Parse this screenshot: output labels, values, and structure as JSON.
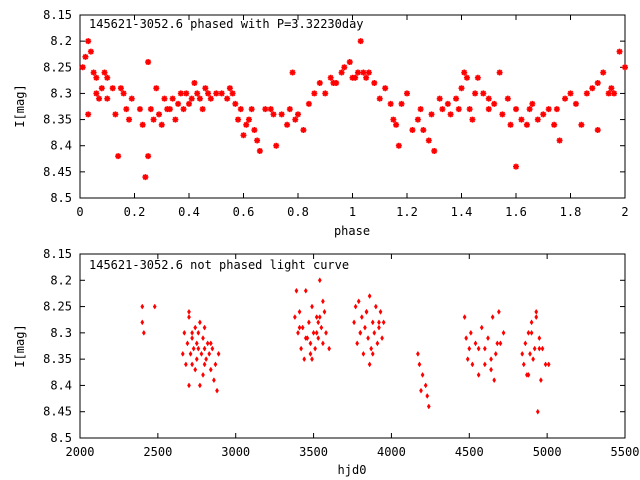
{
  "charts": [
    {
      "type": "scatter",
      "title": "145621-3052.6 phased with P=3.32230day",
      "xlabel": "phase",
      "ylabel": "I[mag]",
      "xlim": [
        0,
        2
      ],
      "ylim": [
        8.5,
        8.15
      ],
      "y_inverted": true,
      "xticks": [
        "0",
        "0.2",
        "0.4",
        "0.6",
        "0.8",
        "1",
        "1.2",
        "1.4",
        "1.6",
        "1.8",
        "2"
      ],
      "yticks": [
        "8.15",
        "8.2",
        "8.25",
        "8.3",
        "8.35",
        "8.4",
        "8.45",
        "8.5"
      ],
      "marker": "star",
      "color": "#ff0000",
      "series": [
        {
          "x": [
            0.01,
            0.02,
            0.03,
            0.03,
            0.04,
            0.05,
            0.06,
            0.06,
            0.07,
            0.08,
            0.09,
            0.1,
            0.1,
            0.12,
            0.13,
            0.14,
            0.15,
            0.16,
            0.17,
            0.18,
            0.19,
            0.22,
            0.23,
            0.24,
            0.25,
            0.25,
            0.26,
            0.27,
            0.28,
            0.29,
            0.3,
            0.31,
            0.32,
            0.33,
            0.34,
            0.35,
            0.36,
            0.37,
            0.38,
            0.39,
            0.4,
            0.41,
            0.42,
            0.43,
            0.44,
            0.45,
            0.46,
            0.47,
            0.48,
            0.5,
            0.52,
            0.54,
            0.55,
            0.56,
            0.57,
            0.58,
            0.59,
            0.6,
            0.61,
            0.62,
            0.63,
            0.64,
            0.65,
            0.66,
            0.68,
            0.7,
            0.71,
            0.72,
            0.74,
            0.76,
            0.77,
            0.78,
            0.79,
            0.8,
            0.82,
            0.84,
            0.86,
            0.88,
            0.9,
            0.92,
            0.93,
            0.94,
            0.96,
            0.97,
            0.99,
            1.0,
            1.01,
            1.02,
            1.03,
            1.04,
            1.05,
            1.06,
            1.08,
            1.1,
            1.12,
            1.14,
            1.15,
            1.16,
            1.17,
            1.18,
            1.2,
            1.22,
            1.24,
            1.25,
            1.26,
            1.28,
            1.29,
            1.3,
            1.32,
            1.33,
            1.35,
            1.36,
            1.38,
            1.39,
            1.4,
            1.41,
            1.42,
            1.43,
            1.44,
            1.45,
            1.46,
            1.48,
            1.5,
            1.5,
            1.52,
            1.54,
            1.55,
            1.57,
            1.58,
            1.6,
            1.6,
            1.62,
            1.64,
            1.65,
            1.66,
            1.68,
            1.7,
            1.72,
            1.74,
            1.75,
            1.76,
            1.78,
            1.8,
            1.82,
            1.84,
            1.86,
            1.88,
            1.9,
            1.9,
            1.92,
            1.94,
            1.95,
            1.96,
            1.98,
            2.0
          ],
          "y": [
            8.25,
            8.23,
            8.2,
            8.34,
            8.22,
            8.26,
            8.27,
            8.3,
            8.31,
            8.29,
            8.26,
            8.27,
            8.31,
            8.29,
            8.34,
            8.42,
            8.29,
            8.3,
            8.33,
            8.35,
            8.31,
            8.33,
            8.36,
            8.46,
            8.42,
            8.24,
            8.33,
            8.35,
            8.29,
            8.34,
            8.36,
            8.31,
            8.33,
            8.33,
            8.31,
            8.35,
            8.32,
            8.3,
            8.33,
            8.3,
            8.32,
            8.31,
            8.28,
            8.3,
            8.31,
            8.33,
            8.29,
            8.3,
            8.31,
            8.3,
            8.3,
            8.31,
            8.29,
            8.3,
            8.32,
            8.35,
            8.33,
            8.38,
            8.36,
            8.35,
            8.33,
            8.37,
            8.39,
            8.41,
            8.33,
            8.33,
            8.34,
            8.4,
            8.34,
            8.36,
            8.33,
            8.26,
            8.35,
            8.34,
            8.37,
            8.32,
            8.3,
            8.28,
            8.3,
            8.27,
            8.28,
            8.28,
            8.26,
            8.25,
            8.24,
            8.27,
            8.27,
            8.26,
            8.2,
            8.26,
            8.27,
            8.26,
            8.28,
            8.31,
            8.29,
            8.32,
            8.35,
            8.36,
            8.4,
            8.32,
            8.3,
            8.37,
            8.35,
            8.33,
            8.37,
            8.39,
            8.34,
            8.41,
            8.31,
            8.33,
            8.32,
            8.34,
            8.31,
            8.33,
            8.29,
            8.26,
            8.27,
            8.33,
            8.35,
            8.3,
            8.27,
            8.3,
            8.33,
            8.31,
            8.32,
            8.26,
            8.34,
            8.31,
            8.36,
            8.33,
            8.44,
            8.35,
            8.36,
            8.33,
            8.32,
            8.35,
            8.34,
            8.33,
            8.36,
            8.33,
            8.39,
            8.31,
            8.3,
            8.32,
            8.36,
            8.3,
            8.29,
            8.37,
            8.28,
            8.26,
            8.3,
            8.29,
            8.3,
            8.22,
            8.25
          ]
        }
      ]
    },
    {
      "type": "scatter",
      "title": "145621-3052.6 not phased light curve",
      "xlabel": "hjd0",
      "ylabel": "I[mag]",
      "xlim": [
        2000,
        5500
      ],
      "ylim": [
        8.5,
        8.15
      ],
      "y_inverted": true,
      "xticks": [
        "2000",
        "2500",
        "3000",
        "3500",
        "4000",
        "4500",
        "5000",
        "5500"
      ],
      "yticks": [
        "8.15",
        "8.2",
        "8.25",
        "8.3",
        "8.35",
        "8.4",
        "8.45",
        "8.5"
      ],
      "marker": "diamond",
      "color": "#ff0000",
      "series": [
        {
          "x": [
            2400,
            2400,
            2410,
            2480,
            2660,
            2670,
            2680,
            2690,
            2700,
            2700,
            2710,
            2720,
            2720,
            2730,
            2740,
            2740,
            2750,
            2750,
            2760,
            2770,
            2770,
            2780,
            2790,
            2790,
            2800,
            2800,
            2810,
            2820,
            2830,
            2840,
            2850,
            2860,
            2870,
            2880,
            2890,
            2700,
            2720,
            2760,
            2800,
            2840,
            3380,
            3390,
            3400,
            3410,
            3420,
            3430,
            3440,
            3450,
            3460,
            3470,
            3480,
            3490,
            3500,
            3510,
            3520,
            3530,
            3540,
            3550,
            3560,
            3570,
            3580,
            3600,
            3410,
            3450,
            3490,
            3530,
            3560,
            3480,
            3520,
            3540,
            3760,
            3770,
            3780,
            3790,
            3800,
            3810,
            3820,
            3830,
            3840,
            3850,
            3860,
            3870,
            3880,
            3890,
            3900,
            3910,
            3920,
            3930,
            3940,
            3950,
            3800,
            3840,
            3880,
            3920,
            3860,
            4170,
            4180,
            4190,
            4200,
            4220,
            4230,
            4240,
            4470,
            4480,
            4490,
            4500,
            4510,
            4520,
            4540,
            4560,
            4580,
            4600,
            4620,
            4640,
            4650,
            4660,
            4670,
            4690,
            4700,
            4720,
            4600,
            4560,
            4640,
            4680,
            4840,
            4850,
            4860,
            4870,
            4880,
            4890,
            4900,
            4910,
            4920,
            4930,
            4940,
            4950,
            4960,
            4970,
            4990,
            5010,
            4900,
            4930,
            4950,
            4880
          ],
          "y": [
            8.25,
            8.28,
            8.3,
            8.25,
            8.34,
            8.3,
            8.36,
            8.32,
            8.27,
            8.4,
            8.34,
            8.3,
            8.36,
            8.33,
            8.29,
            8.37,
            8.32,
            8.35,
            8.33,
            8.4,
            8.28,
            8.34,
            8.31,
            8.38,
            8.33,
            8.36,
            8.35,
            8.32,
            8.34,
            8.37,
            8.33,
            8.39,
            8.36,
            8.41,
            8.34,
            8.26,
            8.31,
            8.3,
            8.29,
            8.32,
            8.27,
            8.22,
            8.3,
            8.26,
            8.33,
            8.29,
            8.35,
            8.22,
            8.31,
            8.28,
            8.34,
            8.25,
            8.3,
            8.33,
            8.27,
            8.31,
            8.2,
            8.29,
            8.32,
            8.26,
            8.3,
            8.33,
            8.29,
            8.31,
            8.35,
            8.28,
            8.24,
            8.32,
            8.3,
            8.27,
            8.28,
            8.25,
            8.32,
            8.24,
            8.3,
            8.27,
            8.34,
            8.29,
            8.26,
            8.31,
            8.23,
            8.33,
            8.28,
            8.3,
            8.25,
            8.32,
            8.29,
            8.26,
            8.31,
            8.28,
            8.3,
            8.26,
            8.34,
            8.28,
            8.36,
            8.34,
            8.36,
            8.41,
            8.38,
            8.4,
            8.42,
            8.44,
            8.27,
            8.31,
            8.35,
            8.33,
            8.3,
            8.36,
            8.32,
            8.38,
            8.29,
            8.33,
            8.31,
            8.35,
            8.27,
            8.39,
            8.34,
            8.26,
            8.32,
            8.3,
            8.36,
            8.33,
            8.37,
            8.32,
            8.34,
            8.36,
            8.32,
            8.38,
            8.3,
            8.34,
            8.28,
            8.35,
            8.33,
            8.26,
            8.45,
            8.31,
            8.39,
            8.33,
            8.36,
            8.36,
            8.3,
            8.27,
            8.33,
            8.38
          ]
        }
      ]
    }
  ]
}
